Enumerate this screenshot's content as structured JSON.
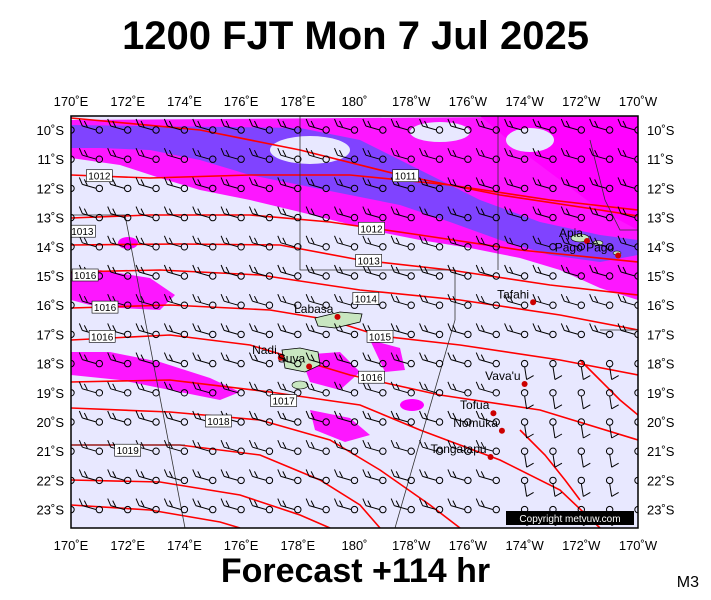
{
  "title": "1200 FJT Mon 7 Jul 2025",
  "forecast": "Forecast +114 hr",
  "model_code": "M3",
  "copyright": "Copyright metvuw.com",
  "lon_labels": [
    "170˚E",
    "172˚E",
    "174˚E",
    "176˚E",
    "178˚E",
    "180˚",
    "178˚W",
    "176˚W",
    "174˚W",
    "172˚W",
    "170˚W"
  ],
  "lat_labels": [
    "10˚S",
    "11˚S",
    "12˚S",
    "13˚S",
    "14˚S",
    "15˚S",
    "16˚S",
    "17˚S",
    "18˚S",
    "19˚S",
    "20˚S",
    "21˚S",
    "22˚S",
    "23˚S"
  ],
  "places": [
    {
      "name": "Apia",
      "lon": -171.8,
      "lat": -13.8
    },
    {
      "name": "Pago Pago",
      "lon": -170.7,
      "lat": -14.3
    },
    {
      "name": "Tafahi",
      "lon": -173.7,
      "lat": -15.9
    },
    {
      "name": "Labasa",
      "lon": 179.4,
      "lat": -16.4
    },
    {
      "name": "Nadi",
      "lon": 177.4,
      "lat": -17.8
    },
    {
      "name": "Suva",
      "lon": 178.4,
      "lat": -18.1
    },
    {
      "name": "Vava'u",
      "lon": -174.0,
      "lat": -18.7
    },
    {
      "name": "Tofua",
      "lon": -175.1,
      "lat": -19.7
    },
    {
      "name": "Nomuka",
      "lon": -174.8,
      "lat": -20.3
    },
    {
      "name": "Tongatapu",
      "lon": -175.2,
      "lat": -21.2
    }
  ],
  "isobar_labels": [
    {
      "text": "1011",
      "lon": -178.2,
      "lat": -11.6
    },
    {
      "text": "1012",
      "lon": 171.0,
      "lat": -11.6
    },
    {
      "text": "1012",
      "lon": -179.4,
      "lat": -13.4
    },
    {
      "text": "1013",
      "lon": 170.4,
      "lat": -13.5
    },
    {
      "text": "1013",
      "lon": -179.5,
      "lat": -14.5
    },
    {
      "text": "1014",
      "lon": -179.6,
      "lat": -15.8
    },
    {
      "text": "1015",
      "lon": -179.1,
      "lat": -17.1
    },
    {
      "text": "1016",
      "lon": 170.5,
      "lat": -15.0
    },
    {
      "text": "1016",
      "lon": -179.4,
      "lat": -18.5
    },
    {
      "text": "1016",
      "lon": 171.2,
      "lat": -16.1
    },
    {
      "text": "1016",
      "lon": 171.1,
      "lat": -17.1
    },
    {
      "text": "1017",
      "lon": 177.5,
      "lat": -19.3
    },
    {
      "text": "1018",
      "lon": 175.2,
      "lat": -20.0
    },
    {
      "text": "1019",
      "lon": 172.0,
      "lat": -21.0
    }
  ],
  "colors": {
    "background": "#e8e8ff",
    "rain_light": "#ff00ff",
    "rain_heavy": "#6a4bff",
    "isobar": "#ff0000",
    "land": "#c8e6c0",
    "marker": "#cc0000"
  }
}
